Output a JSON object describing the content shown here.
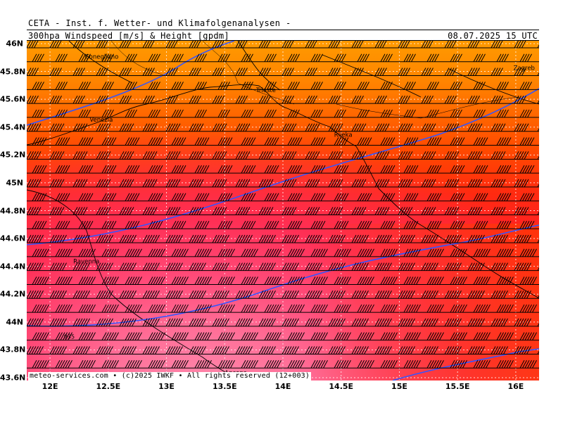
{
  "header": {
    "institute": "CETA - Inst. f. Wetter- und Klimafolgenanalysen -",
    "product": "300hpa Windspeed [m/s] & Height [gpdm]",
    "valid_time": "08.07.2025 15 UTC"
  },
  "footer": {
    "copyright": "meteo-services.com • (c)2025 IWKF • All rights reserved (12+003)"
  },
  "axes": {
    "lat_labels": [
      "46N",
      "45.8N",
      "45.6N",
      "45.4N",
      "45.2N",
      "45N",
      "44.8N",
      "44.6N",
      "44.4N",
      "44.2N",
      "44N",
      "43.8N",
      "43.6N"
    ],
    "lat_values": [
      46,
      45.8,
      45.6,
      45.4,
      45.2,
      45,
      44.8,
      44.6,
      44.4,
      44.2,
      44,
      43.8,
      43.6
    ],
    "lon_labels": [
      "12E",
      "12.5E",
      "13E",
      "13.5E",
      "14E",
      "14.5E",
      "15E",
      "15.5E",
      "16E"
    ],
    "lon_values": [
      12,
      12.5,
      13,
      13.5,
      14,
      14.5,
      15,
      15.5,
      16
    ],
    "lat_range": [
      43.58,
      46.02
    ],
    "lon_range": [
      11.8,
      16.2
    ]
  },
  "cities": [
    {
      "name": "Conegliano",
      "lon": 12.3,
      "lat": 45.89
    },
    {
      "name": "Trieste",
      "lon": 13.77,
      "lat": 45.65
    },
    {
      "name": "Zagreb",
      "lon": 15.98,
      "lat": 45.81
    },
    {
      "name": "Venezia",
      "lon": 12.34,
      "lat": 45.44
    },
    {
      "name": "Rijeka",
      "lon": 14.44,
      "lat": 45.33
    },
    {
      "name": "Ravenna",
      "lon": 12.2,
      "lat": 44.42
    },
    {
      "name": "Ancona",
      "lon": 13.5,
      "lat": 43.62
    }
  ],
  "contour_labels": [
    {
      "text": "935",
      "lon": 11.95,
      "lat": 43.88
    }
  ],
  "colors": {
    "wind_shading_north_to_south": [
      "#ff9900",
      "#ff7f00",
      "#ff6600",
      "#ff4400",
      "#ff2a1a",
      "#ff2b4d",
      "#ff3d6e",
      "#ff5c8a",
      "#ff7aa2"
    ],
    "height_contour": "#3355ff",
    "barbs": "#000000",
    "grid": "#ffffff"
  },
  "map_features": [
    "wind-speed-shading",
    "wind-barbs",
    "height-contours",
    "coastlines",
    "borders",
    "lat-lon-grid"
  ]
}
